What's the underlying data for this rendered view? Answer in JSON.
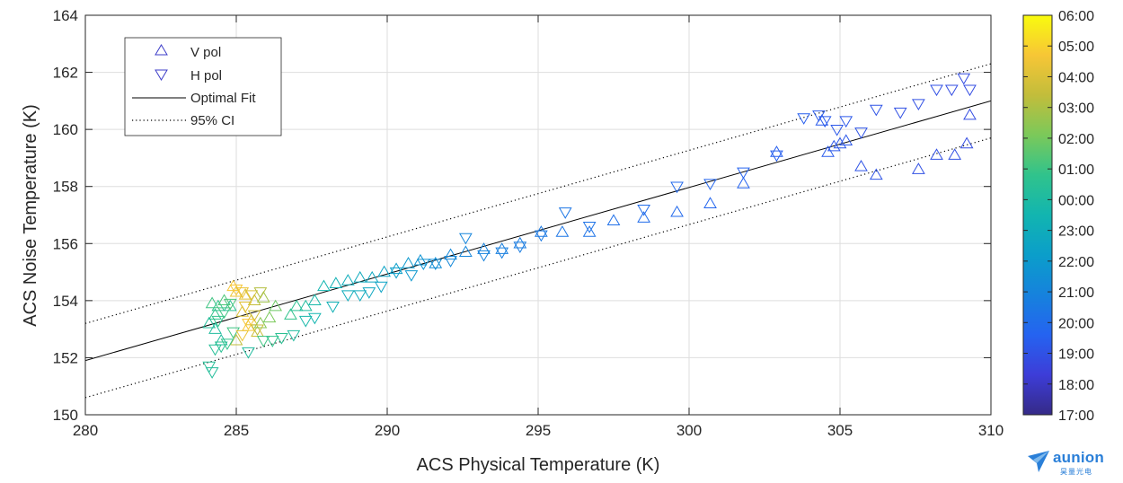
{
  "chart_data": {
    "type": "scatter",
    "xlabel": "ACS Physical Temperature (K)",
    "ylabel": "ACS Noise Temperature (K)",
    "xlim": [
      280,
      310
    ],
    "ylim": [
      150,
      164
    ],
    "xticks": [
      "280",
      "285",
      "290",
      "295",
      "300",
      "305",
      "310"
    ],
    "yticks": [
      "150",
      "152",
      "154",
      "156",
      "158",
      "160",
      "162",
      "164"
    ],
    "grid": true,
    "legend_position": "top-left",
    "legend": [
      "V pol",
      "H pol",
      "Optimal Fit",
      "95% CI"
    ],
    "fit_line": {
      "name": "Optimal Fit",
      "x": [
        280,
        310
      ],
      "y": [
        151.9,
        161.0
      ]
    },
    "ci_upper": {
      "name": "95% CI",
      "x": [
        280,
        310
      ],
      "y": [
        153.2,
        162.3
      ]
    },
    "ci_lower": {
      "name": "95% CI",
      "x": [
        280,
        310
      ],
      "y": [
        150.6,
        159.7
      ]
    },
    "colorbar": {
      "labels": [
        "06:00",
        "05:00",
        "04:00",
        "03:00",
        "02:00",
        "01:00",
        "00:00",
        "23:00",
        "22:00",
        "21:00",
        "20:00",
        "19:00",
        "18:00",
        "17:00"
      ],
      "colormap": "parula"
    },
    "series": [
      {
        "name": "V pol",
        "marker": "triangle-up",
        "points": [
          [
            284.2,
            153.9,
            0.62
          ],
          [
            284.4,
            153.8,
            0.6
          ],
          [
            284.6,
            154.0,
            0.64
          ],
          [
            284.8,
            153.8,
            0.58
          ],
          [
            284.3,
            153.5,
            0.6
          ],
          [
            284.1,
            153.2,
            0.56
          ],
          [
            284.3,
            153.0,
            0.55
          ],
          [
            284.5,
            152.6,
            0.55
          ],
          [
            284.9,
            154.5,
            0.9
          ],
          [
            285.0,
            154.3,
            0.88
          ],
          [
            285.3,
            154.2,
            0.86
          ],
          [
            285.6,
            154.0,
            0.8
          ],
          [
            285.9,
            154.1,
            0.75
          ],
          [
            285.2,
            153.6,
            0.85
          ],
          [
            285.5,
            153.3,
            0.86
          ],
          [
            285.4,
            153.1,
            0.9
          ],
          [
            285.7,
            152.9,
            0.82
          ],
          [
            285.0,
            152.6,
            0.8
          ],
          [
            285.8,
            153.2,
            0.72
          ],
          [
            286.1,
            153.4,
            0.7
          ],
          [
            286.3,
            153.8,
            0.68
          ],
          [
            286.8,
            153.5,
            0.6
          ],
          [
            287.0,
            153.8,
            0.58
          ],
          [
            287.3,
            153.8,
            0.55
          ],
          [
            287.6,
            154.0,
            0.52
          ],
          [
            287.9,
            154.5,
            0.5
          ],
          [
            288.3,
            154.6,
            0.48
          ],
          [
            288.7,
            154.7,
            0.46
          ],
          [
            289.1,
            154.8,
            0.45
          ],
          [
            289.5,
            154.8,
            0.44
          ],
          [
            289.9,
            155.0,
            0.42
          ],
          [
            290.3,
            155.1,
            0.4
          ],
          [
            290.7,
            155.3,
            0.38
          ],
          [
            291.1,
            155.4,
            0.36
          ],
          [
            291.6,
            155.3,
            0.34
          ],
          [
            292.1,
            155.6,
            0.32
          ],
          [
            292.6,
            155.7,
            0.31
          ],
          [
            293.2,
            155.8,
            0.3
          ],
          [
            293.8,
            155.8,
            0.29
          ],
          [
            294.4,
            156.0,
            0.28
          ],
          [
            295.1,
            156.4,
            0.27
          ],
          [
            295.8,
            156.4,
            0.26
          ],
          [
            296.7,
            156.4,
            0.25
          ],
          [
            297.5,
            156.8,
            0.24
          ],
          [
            298.5,
            156.9,
            0.23
          ],
          [
            299.6,
            157.1,
            0.22
          ],
          [
            300.7,
            157.4,
            0.21
          ],
          [
            301.8,
            158.1,
            0.2
          ],
          [
            302.9,
            159.2,
            0.19
          ],
          [
            304.4,
            160.3,
            0.18
          ],
          [
            304.6,
            159.2,
            0.18
          ],
          [
            304.8,
            159.4,
            0.17
          ],
          [
            305.0,
            159.5,
            0.17
          ],
          [
            305.2,
            159.6,
            0.17
          ],
          [
            305.7,
            158.7,
            0.16
          ],
          [
            306.2,
            158.4,
            0.16
          ],
          [
            307.6,
            158.6,
            0.15
          ],
          [
            308.2,
            159.1,
            0.15
          ],
          [
            308.8,
            159.1,
            0.15
          ],
          [
            309.2,
            159.5,
            0.14
          ],
          [
            309.3,
            160.5,
            0.14
          ]
        ]
      },
      {
        "name": "H pol",
        "marker": "triangle-down",
        "points": [
          [
            284.1,
            151.7,
            0.57
          ],
          [
            284.2,
            151.5,
            0.56
          ],
          [
            284.3,
            152.3,
            0.57
          ],
          [
            284.5,
            152.4,
            0.58
          ],
          [
            284.7,
            152.5,
            0.6
          ],
          [
            284.9,
            152.9,
            0.62
          ],
          [
            284.4,
            153.3,
            0.6
          ],
          [
            284.6,
            153.6,
            0.62
          ],
          [
            284.8,
            153.9,
            0.64
          ],
          [
            285.0,
            154.4,
            0.9
          ],
          [
            285.2,
            154.3,
            0.88
          ],
          [
            285.5,
            154.2,
            0.85
          ],
          [
            285.8,
            154.3,
            0.78
          ],
          [
            285.3,
            153.8,
            0.86
          ],
          [
            285.6,
            153.5,
            0.82
          ],
          [
            285.4,
            153.2,
            0.9
          ],
          [
            285.2,
            152.8,
            0.88
          ],
          [
            285.7,
            153.0,
            0.8
          ],
          [
            285.4,
            152.2,
            0.55
          ],
          [
            285.9,
            152.6,
            0.62
          ],
          [
            286.2,
            152.6,
            0.6
          ],
          [
            286.5,
            152.7,
            0.58
          ],
          [
            286.9,
            152.8,
            0.55
          ],
          [
            287.3,
            153.3,
            0.52
          ],
          [
            287.6,
            153.4,
            0.5
          ],
          [
            288.2,
            153.8,
            0.48
          ],
          [
            288.7,
            154.2,
            0.46
          ],
          [
            289.1,
            154.2,
            0.45
          ],
          [
            289.4,
            154.3,
            0.44
          ],
          [
            289.8,
            154.5,
            0.42
          ],
          [
            290.3,
            155.0,
            0.4
          ],
          [
            290.8,
            154.9,
            0.38
          ],
          [
            291.2,
            155.3,
            0.36
          ],
          [
            291.6,
            155.3,
            0.34
          ],
          [
            292.1,
            155.4,
            0.32
          ],
          [
            292.6,
            156.2,
            0.31
          ],
          [
            293.2,
            155.6,
            0.3
          ],
          [
            293.8,
            155.7,
            0.29
          ],
          [
            294.4,
            155.9,
            0.28
          ],
          [
            295.1,
            156.3,
            0.27
          ],
          [
            295.9,
            157.1,
            0.26
          ],
          [
            296.7,
            156.6,
            0.25
          ],
          [
            298.5,
            157.2,
            0.23
          ],
          [
            299.6,
            158.0,
            0.22
          ],
          [
            300.7,
            158.1,
            0.21
          ],
          [
            301.8,
            158.5,
            0.2
          ],
          [
            302.9,
            159.1,
            0.19
          ],
          [
            303.8,
            160.4,
            0.19
          ],
          [
            304.3,
            160.5,
            0.18
          ],
          [
            304.5,
            160.3,
            0.18
          ],
          [
            304.9,
            160.0,
            0.17
          ],
          [
            305.2,
            160.3,
            0.17
          ],
          [
            305.7,
            159.9,
            0.16
          ],
          [
            306.2,
            160.7,
            0.16
          ],
          [
            307.0,
            160.6,
            0.15
          ],
          [
            307.6,
            160.9,
            0.15
          ],
          [
            308.2,
            161.4,
            0.15
          ],
          [
            308.7,
            161.4,
            0.14
          ],
          [
            309.1,
            161.8,
            0.14
          ],
          [
            309.3,
            161.4,
            0.14
          ]
        ]
      }
    ]
  },
  "brand": {
    "name": "aunion",
    "subtitle": "昊量光电"
  }
}
